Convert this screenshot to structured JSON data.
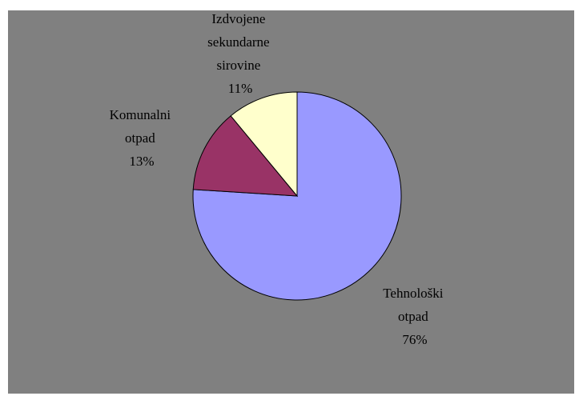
{
  "chart_data": {
    "type": "pie",
    "slices": [
      {
        "label_lines": [
          "Tehnološki",
          "otpad",
          "76%"
        ],
        "value": 76,
        "color": "#9999ff"
      },
      {
        "label_lines": [
          "Komunalni",
          "otpad",
          "13%"
        ],
        "value": 13,
        "color": "#993366"
      },
      {
        "label_lines": [
          "Izdvojene",
          "sekundarne",
          "sirovine",
          "11%"
        ],
        "value": 11,
        "color": "#ffffcc"
      }
    ],
    "start": "12 o'clock",
    "direction": "clockwise",
    "legend": "none",
    "background": "#808080",
    "outline": "#000000"
  }
}
